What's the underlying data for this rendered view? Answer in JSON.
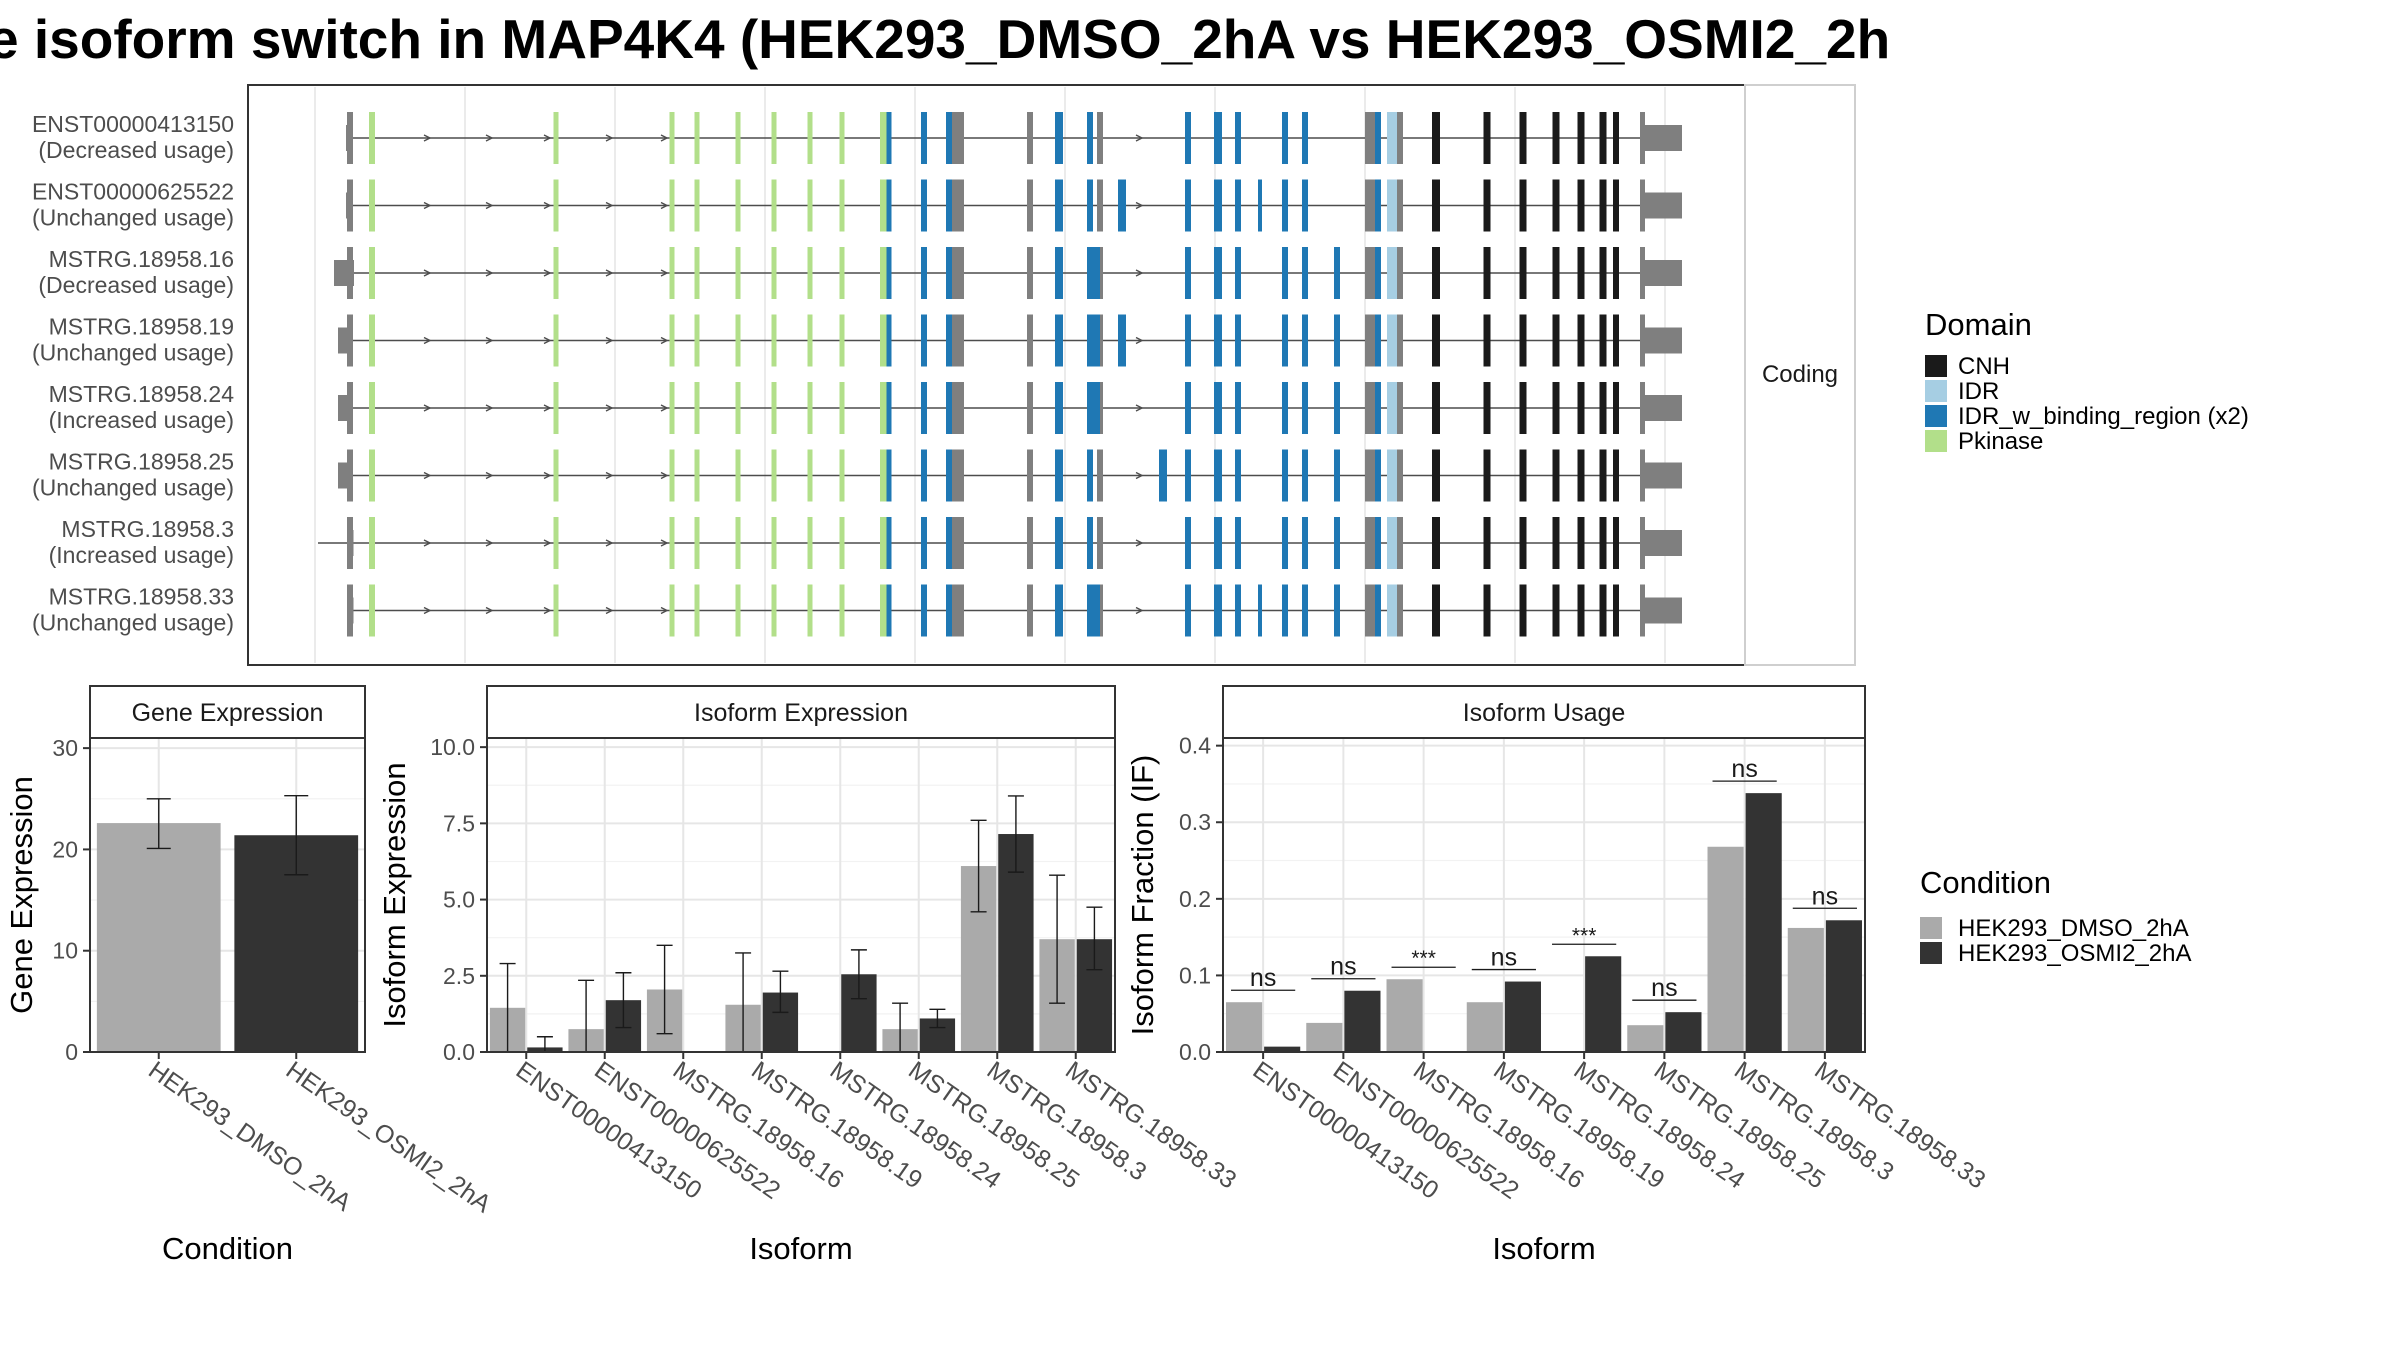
{
  "title": "e isoform switch in MAP4K4 (HEK293_DMSO_2hA vs HEK293_OSMI2_2h",
  "structure": {
    "facet_label": "Coding",
    "isoforms": [
      {
        "name": "ENST00000413150",
        "usage": "(Decreased usage)"
      },
      {
        "name": "ENST00000625522",
        "usage": "(Unchanged usage)"
      },
      {
        "name": "MSTRG.18958.16",
        "usage": "(Decreased usage)"
      },
      {
        "name": "MSTRG.18958.19",
        "usage": "(Unchanged usage)"
      },
      {
        "name": "MSTRG.18958.24",
        "usage": "(Increased usage)"
      },
      {
        "name": "MSTRG.18958.25",
        "usage": "(Unchanged usage)"
      },
      {
        "name": "MSTRG.18958.3",
        "usage": "(Increased usage)"
      },
      {
        "name": "MSTRG.18958.33",
        "usage": "(Unchanged usage)"
      }
    ],
    "domain_legend": {
      "title": "Domain",
      "items": [
        {
          "label": "CNH",
          "color": "#1a1a1a"
        },
        {
          "label": "IDR",
          "color": "#a6cee3"
        },
        {
          "label": "IDR_w_binding_region (x2)",
          "color": "#1f78b4"
        },
        {
          "label": "Pkinase",
          "color": "#b2df8a"
        }
      ]
    }
  },
  "condition_legend": {
    "title": "Condition",
    "items": [
      {
        "label": "HEK293_DMSO_2hA",
        "color": "#aaaaaa"
      },
      {
        "label": "HEK293_OSMI2_2hA",
        "color": "#333333"
      }
    ]
  },
  "chart_data": [
    {
      "type": "bar",
      "panel": "Gene Expression",
      "xlabel": "Condition",
      "ylabel": "Gene Expression",
      "ylim": [
        0,
        31
      ],
      "yticks": [
        0,
        10,
        20,
        30
      ],
      "categories": [
        "HEK293_DMSO_2hA",
        "HEK293_OSMI2_2hA"
      ],
      "values": [
        22.6,
        21.4
      ],
      "error": [
        [
          20.1,
          25.0
        ],
        [
          17.5,
          25.3
        ]
      ],
      "colors": [
        "#aaaaaa",
        "#333333"
      ]
    },
    {
      "type": "bar",
      "panel": "Isoform Expression",
      "xlabel": "Isoform",
      "ylabel": "Isoform Expression",
      "ylim": [
        0,
        10.3
      ],
      "yticks": [
        "0.0",
        "2.5",
        "5.0",
        "7.5",
        "10.0"
      ],
      "categories": [
        "ENST00000413150",
        "ENST00000625522",
        "MSTRG.18958.16",
        "MSTRG.18958.19",
        "MSTRG.18958.24",
        "MSTRG.18958.25",
        "MSTRG.18958.3",
        "MSTRG.18958.33"
      ],
      "series": [
        {
          "name": "HEK293_DMSO_2hA",
          "values": [
            1.45,
            0.75,
            2.05,
            1.55,
            0.0,
            0.75,
            6.1,
            3.7
          ],
          "error": [
            [
              0.0,
              2.9
            ],
            [
              0.0,
              2.35
            ],
            [
              0.6,
              3.5
            ],
            [
              0.0,
              3.25
            ],
            [
              0.0,
              0.0
            ],
            [
              0.0,
              1.6
            ],
            [
              4.6,
              7.6
            ],
            [
              1.6,
              5.8
            ]
          ]
        },
        {
          "name": "HEK293_OSMI2_2hA",
          "values": [
            0.15,
            1.7,
            0.0,
            1.95,
            2.55,
            1.1,
            7.15,
            3.7
          ],
          "error": [
            [
              0.0,
              0.5
            ],
            [
              0.8,
              2.6
            ],
            [
              0.0,
              0.0
            ],
            [
              1.3,
              2.65
            ],
            [
              1.75,
              3.35
            ],
            [
              0.8,
              1.4
            ],
            [
              5.9,
              8.4
            ],
            [
              2.7,
              4.75
            ]
          ]
        }
      ]
    },
    {
      "type": "bar",
      "panel": "Isoform Usage",
      "xlabel": "Isoform",
      "ylabel": "Isoform Fraction (IF)",
      "ylim": [
        0,
        0.41
      ],
      "yticks": [
        "0.0",
        "0.1",
        "0.2",
        "0.3",
        "0.4"
      ],
      "categories": [
        "ENST00000413150",
        "ENST00000625522",
        "MSTRG.18958.16",
        "MSTRG.18958.19",
        "MSTRG.18958.24",
        "MSTRG.18958.25",
        "MSTRG.18958.3",
        "MSTRG.18958.33"
      ],
      "series": [
        {
          "name": "HEK293_DMSO_2hA",
          "values": [
            0.065,
            0.038,
            0.095,
            0.065,
            0.0,
            0.035,
            0.268,
            0.162
          ]
        },
        {
          "name": "HEK293_OSMI2_2hA",
          "values": [
            0.007,
            0.08,
            0.0,
            0.092,
            0.125,
            0.052,
            0.338,
            0.172
          ]
        }
      ],
      "significance": [
        "ns",
        "ns",
        "***",
        "ns",
        "***",
        "ns",
        "ns",
        "ns"
      ]
    }
  ]
}
